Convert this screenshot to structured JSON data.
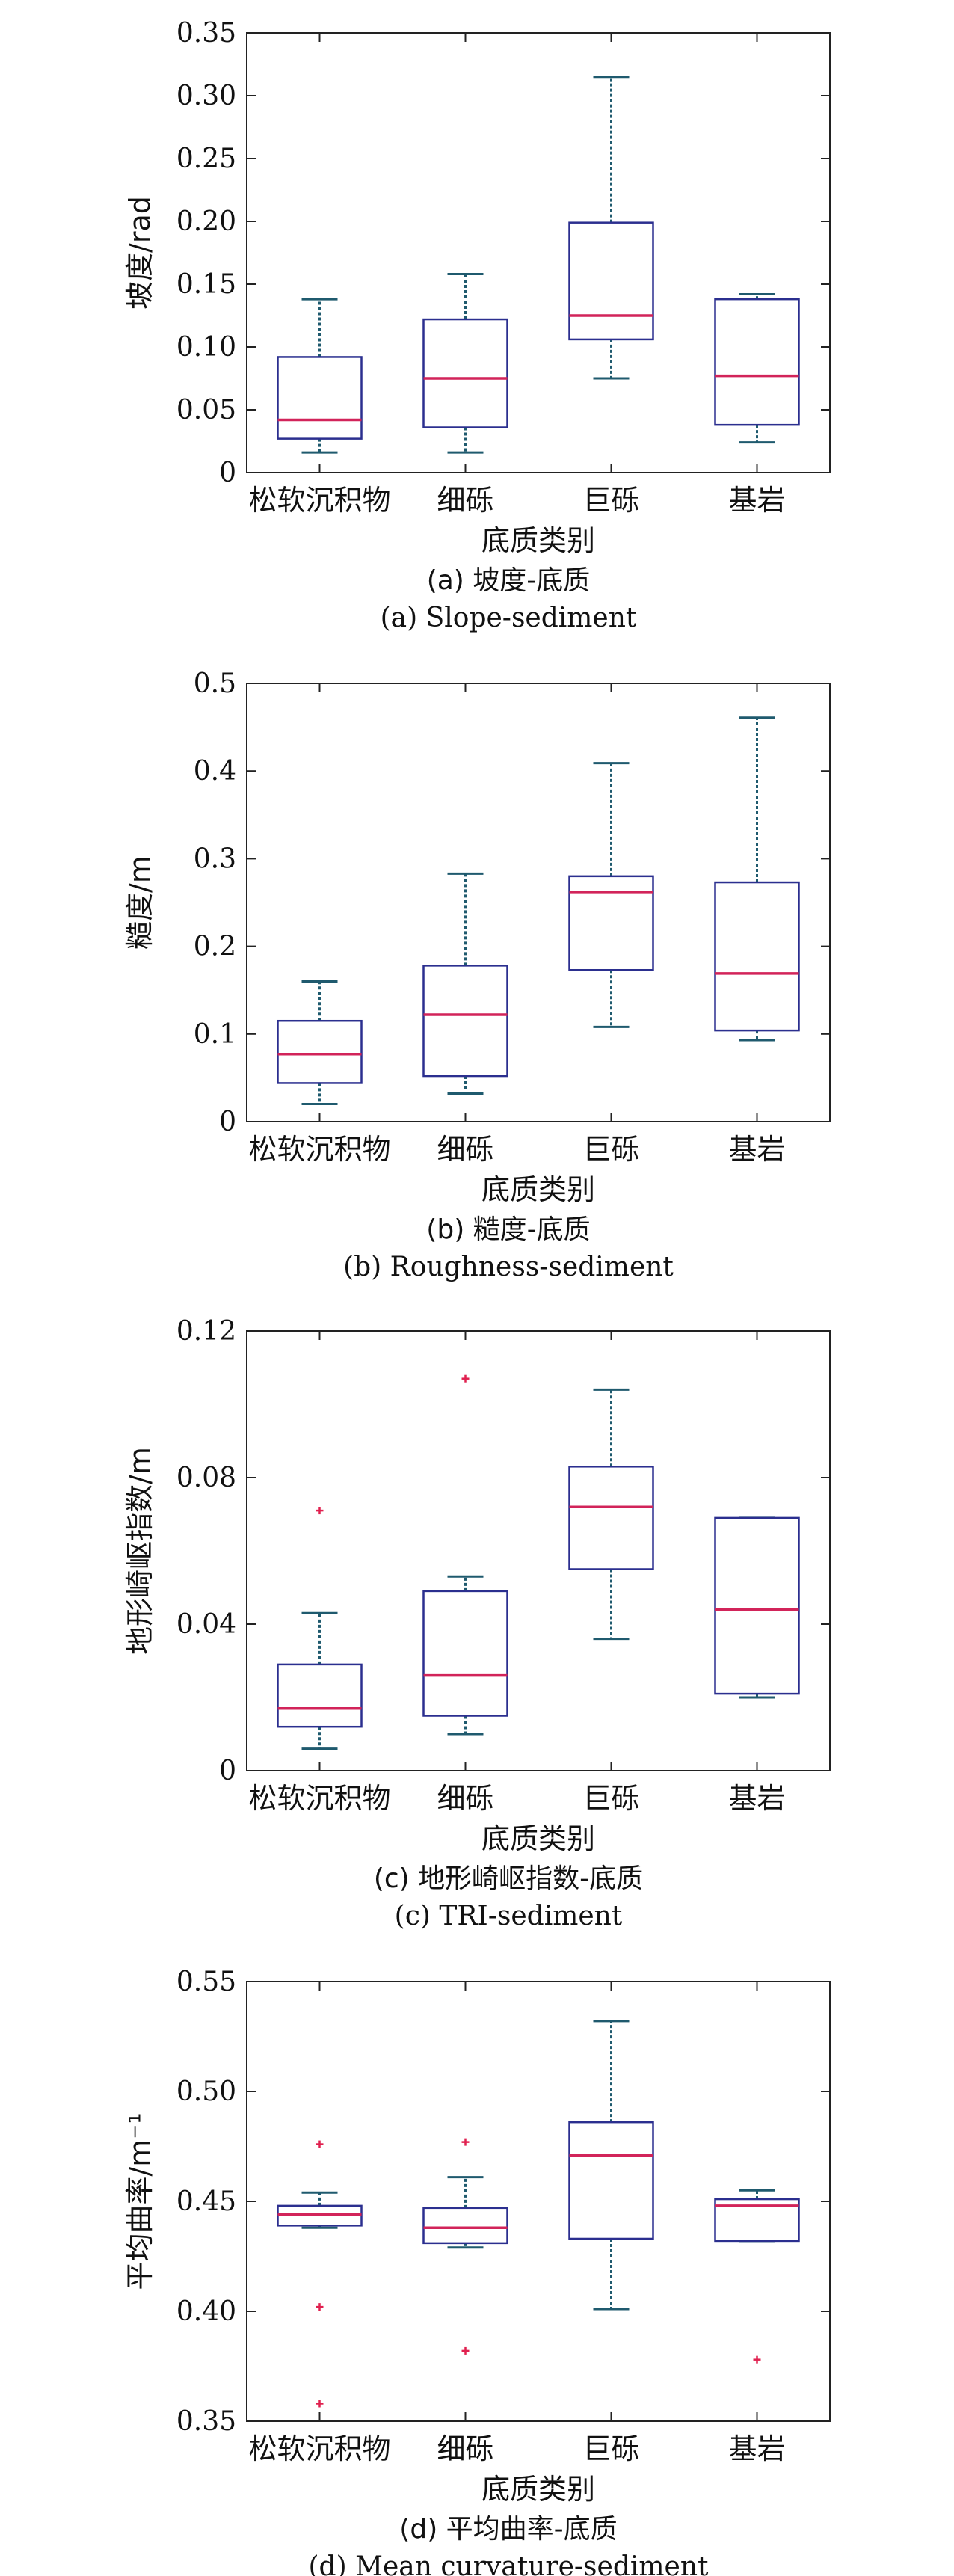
{
  "chart_data": [
    {
      "type": "box",
      "ylabel": "坡度/rad",
      "xlabel": "底质类别",
      "caption_cn": "(a) 坡度-底质",
      "caption_en": "(a) Slope-sediment",
      "ylim": [
        0,
        0.35
      ],
      "yticks": [
        0,
        0.05,
        0.1,
        0.15,
        0.2,
        0.25,
        0.3,
        0.35
      ],
      "ytick_labels": [
        "0",
        "0.05",
        "0.10",
        "0.15",
        "0.20",
        "0.25",
        "0.30",
        "0.35"
      ],
      "categories": [
        "松软沉积物",
        "细砾",
        "巨砾",
        "基岩"
      ],
      "boxes": [
        {
          "min": 0.016,
          "q1": 0.027,
          "median": 0.042,
          "q3": 0.092,
          "max": 0.138,
          "outliers": []
        },
        {
          "min": 0.016,
          "q1": 0.036,
          "median": 0.075,
          "q3": 0.122,
          "max": 0.158,
          "outliers": []
        },
        {
          "min": 0.075,
          "q1": 0.106,
          "median": 0.125,
          "q3": 0.199,
          "max": 0.315,
          "outliers": []
        },
        {
          "min": 0.024,
          "q1": 0.038,
          "median": 0.077,
          "q3": 0.138,
          "max": 0.142,
          "outliers": []
        }
      ]
    },
    {
      "type": "box",
      "ylabel": "糙度/m",
      "xlabel": "底质类别",
      "caption_cn": "(b) 糙度-底质",
      "caption_en": "(b) Roughness-sediment",
      "ylim": [
        0,
        0.5
      ],
      "yticks": [
        0,
        0.1,
        0.2,
        0.3,
        0.4,
        0.5
      ],
      "ytick_labels": [
        "0",
        "0.1",
        "0.2",
        "0.3",
        "0.4",
        "0.5"
      ],
      "categories": [
        "松软沉积物",
        "细砾",
        "巨砾",
        "基岩"
      ],
      "boxes": [
        {
          "min": 0.02,
          "q1": 0.044,
          "median": 0.077,
          "q3": 0.115,
          "max": 0.16,
          "outliers": []
        },
        {
          "min": 0.032,
          "q1": 0.052,
          "median": 0.122,
          "q3": 0.178,
          "max": 0.283,
          "outliers": []
        },
        {
          "min": 0.108,
          "q1": 0.173,
          "median": 0.262,
          "q3": 0.28,
          "max": 0.409,
          "outliers": []
        },
        {
          "min": 0.093,
          "q1": 0.104,
          "median": 0.169,
          "q3": 0.273,
          "max": 0.461,
          "outliers": []
        }
      ]
    },
    {
      "type": "box",
      "ylabel": "地形崎岖指数/m",
      "xlabel": "底质类别",
      "caption_cn": "(c) 地形崎岖指数-底质",
      "caption_en": "(c) TRI-sediment",
      "ylim": [
        0,
        0.12
      ],
      "yticks": [
        0,
        0.04,
        0.08,
        0.12
      ],
      "ytick_labels": [
        "0",
        "0.04",
        "0.08",
        "0.12"
      ],
      "categories": [
        "松软沉积物",
        "细砾",
        "巨砾",
        "基岩"
      ],
      "boxes": [
        {
          "min": 0.006,
          "q1": 0.012,
          "median": 0.017,
          "q3": 0.029,
          "max": 0.043,
          "outliers": [
            0.071
          ]
        },
        {
          "min": 0.01,
          "q1": 0.015,
          "median": 0.026,
          "q3": 0.049,
          "max": 0.053,
          "outliers": [
            0.107
          ]
        },
        {
          "min": 0.036,
          "q1": 0.055,
          "median": 0.072,
          "q3": 0.083,
          "max": 0.104,
          "outliers": []
        },
        {
          "min": 0.02,
          "q1": 0.021,
          "median": 0.044,
          "q3": 0.069,
          "max": 0.069,
          "outliers": []
        }
      ]
    },
    {
      "type": "box",
      "ylabel": "平均曲率/m⁻¹",
      "xlabel": "底质类别",
      "caption_cn": "(d) 平均曲率-底质",
      "caption_en": "(d) Mean curvature-sediment",
      "ylim": [
        0.35,
        0.55
      ],
      "yticks": [
        0.35,
        0.4,
        0.45,
        0.5,
        0.55
      ],
      "ytick_labels": [
        "0.35",
        "0.40",
        "0.45",
        "0.50",
        "0.55"
      ],
      "categories": [
        "松软沉积物",
        "细砾",
        "巨砾",
        "基岩"
      ],
      "boxes": [
        {
          "min": 0.438,
          "q1": 0.439,
          "median": 0.444,
          "q3": 0.448,
          "max": 0.454,
          "outliers": [
            0.476,
            0.402,
            0.358
          ]
        },
        {
          "min": 0.429,
          "q1": 0.431,
          "median": 0.438,
          "q3": 0.447,
          "max": 0.461,
          "outliers": [
            0.477,
            0.382
          ]
        },
        {
          "min": 0.401,
          "q1": 0.433,
          "median": 0.471,
          "q3": 0.486,
          "max": 0.532,
          "outliers": []
        },
        {
          "min": 0.432,
          "q1": 0.432,
          "median": 0.448,
          "q3": 0.451,
          "max": 0.455,
          "outliers": [
            0.378
          ]
        }
      ]
    }
  ]
}
